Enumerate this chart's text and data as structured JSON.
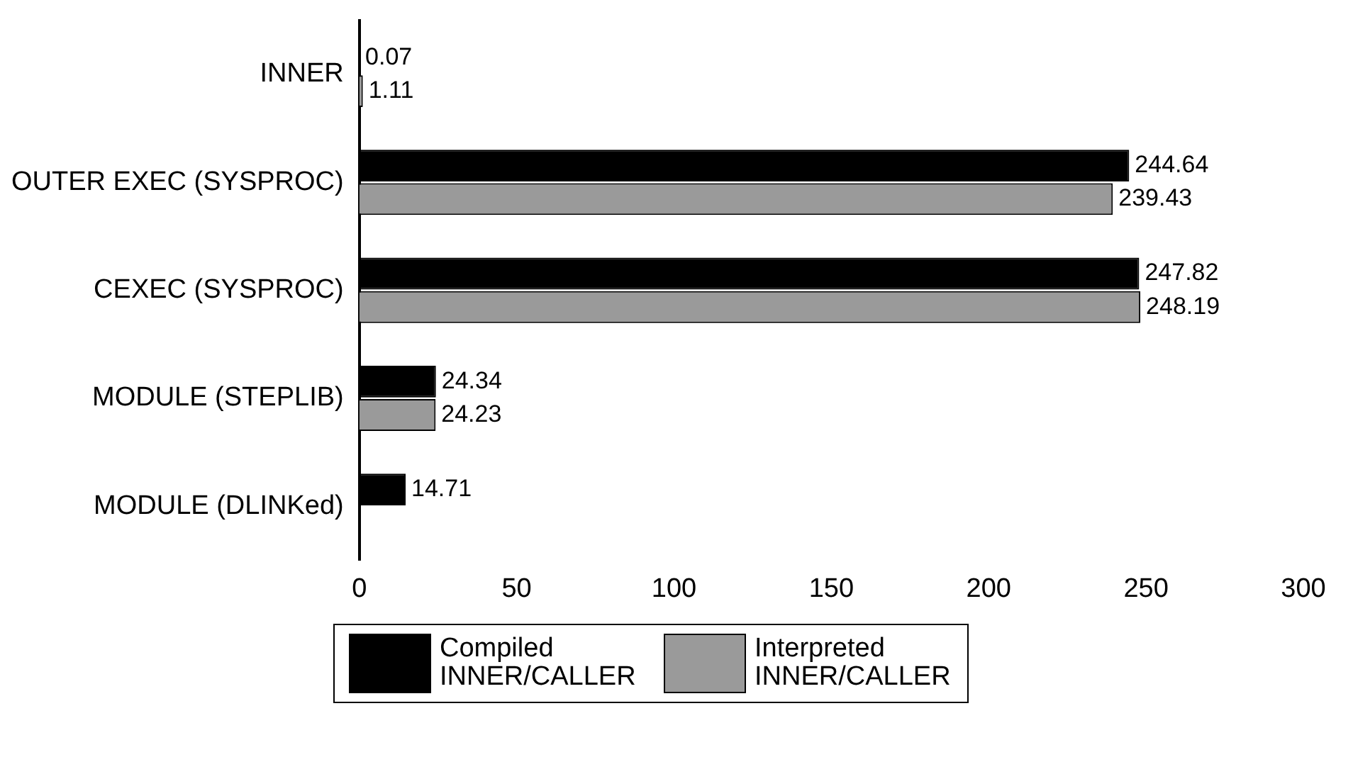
{
  "chart_data": {
    "type": "bar",
    "orientation": "horizontal",
    "categories": [
      "INNER",
      "OUTER EXEC (SYSPROC)",
      "CEXEC (SYSPROC)",
      "MODULE (STEPLIB)",
      "MODULE (DLINKed)"
    ],
    "series": [
      {
        "name": "Compiled INNER/CALLER",
        "color": "#000000",
        "values": [
          0.07,
          244.64,
          247.82,
          24.34,
          14.71
        ]
      },
      {
        "name": "Interpreted INNER/CALLER",
        "color": "#9a9a9a",
        "values": [
          1.11,
          239.43,
          248.19,
          24.23,
          null
        ]
      }
    ],
    "xlim": [
      0,
      300
    ],
    "xticks": [
      0,
      50,
      100,
      150,
      200,
      250,
      300
    ],
    "data_labels": true,
    "legend": "bottom",
    "grid": false
  }
}
